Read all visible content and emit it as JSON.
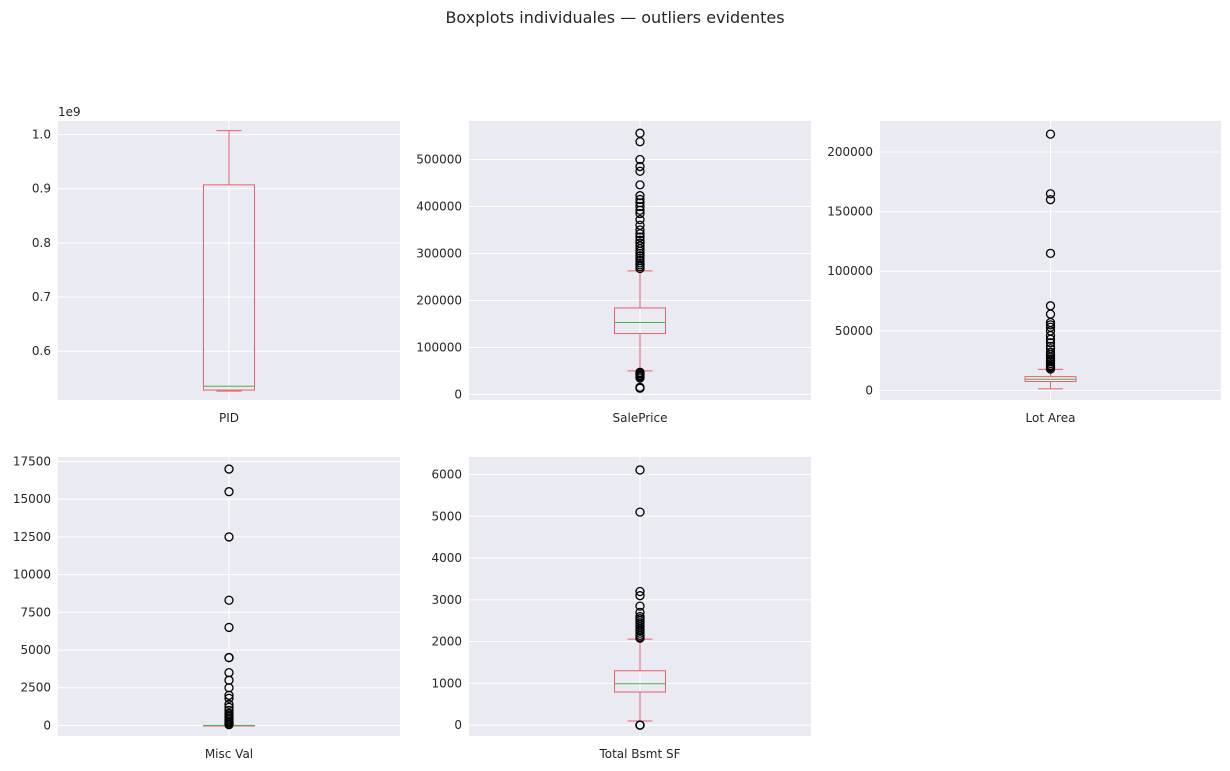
{
  "figure": {
    "suptitle": "Boxplots individuales — outliers evidentes",
    "style": {
      "axes_bg": "#eaeaf2",
      "grid": "#ffffff",
      "box": "#e8616e",
      "median": "#4daf4a",
      "flier": "#000000"
    }
  },
  "chart_data": [
    {
      "type": "box",
      "category": "PID",
      "ylim": [
        0.51,
        1.025
      ],
      "yticks": [
        0.6,
        0.7,
        0.8,
        0.9,
        1.0
      ],
      "ytick_labels": [
        "0.6",
        "0.7",
        "0.8",
        "0.9",
        "1.0"
      ],
      "offset_label": "1e9",
      "stats": {
        "whislo": 0.5263,
        "q1": 0.5284,
        "med": 0.5354,
        "q3": 0.9071,
        "whishi": 1.0072
      },
      "fliers": []
    },
    {
      "type": "box",
      "category": "SalePrice",
      "ylim": [
        -12000,
        582000
      ],
      "yticks": [
        0,
        100000,
        200000,
        300000,
        400000,
        500000
      ],
      "ytick_labels": [
        "0",
        "100000",
        "200000",
        "300000",
        "400000",
        "500000"
      ],
      "stats": {
        "whislo": 50000,
        "q1": 129500,
        "med": 153000,
        "q3": 184000,
        "whishi": 263000
      },
      "fliers": [
        13000,
        15000,
        35000,
        38000,
        40000,
        43000,
        45000,
        47000,
        268000,
        272000,
        276000,
        280000,
        285000,
        290000,
        295000,
        300000,
        305000,
        310000,
        316000,
        322000,
        328000,
        335000,
        342000,
        350000,
        360000,
        372000,
        385000,
        392000,
        400000,
        408000,
        415000,
        423000,
        446000,
        475000,
        485000,
        500000,
        538000,
        556000
      ]
    },
    {
      "type": "box",
      "category": "Lot Area",
      "ylim": [
        -8000,
        226000
      ],
      "yticks": [
        0,
        50000,
        100000,
        150000,
        200000
      ],
      "ytick_labels": [
        "0",
        "50000",
        "100000",
        "150000",
        "200000"
      ],
      "stats": {
        "whislo": 1300,
        "q1": 7500,
        "med": 9450,
        "q3": 11600,
        "whishi": 17700
      },
      "fliers": [
        18000,
        19000,
        20000,
        21000,
        22500,
        24000,
        25000,
        26500,
        28000,
        30000,
        32000,
        35000,
        37000,
        40000,
        43000,
        46000,
        50000,
        53000,
        55000,
        57000,
        64000,
        71000,
        115000,
        160000,
        165000,
        215000
      ]
    },
    {
      "type": "box",
      "category": "Misc Val",
      "ylim": [
        -700,
        17800
      ],
      "yticks": [
        0,
        2500,
        5000,
        7500,
        10000,
        12500,
        15000,
        17500
      ],
      "ytick_labels": [
        "0",
        "2500",
        "5000",
        "7500",
        "10000",
        "12500",
        "15000",
        "17500"
      ],
      "stats": {
        "whislo": 0,
        "q1": 0,
        "med": 0,
        "q3": 0,
        "whishi": 0
      },
      "fliers": [
        50,
        100,
        200,
        300,
        400,
        500,
        600,
        700,
        800,
        1000,
        1200,
        1400,
        1800,
        2000,
        2500,
        3000,
        3500,
        4500,
        4500,
        6500,
        8300,
        12500,
        15500,
        17000
      ]
    },
    {
      "type": "box",
      "category": "Total Bsmt SF",
      "ylim": [
        -260,
        6420
      ],
      "yticks": [
        0,
        1000,
        2000,
        3000,
        4000,
        5000,
        6000
      ],
      "ytick_labels": [
        "0",
        "1000",
        "2000",
        "3000",
        "4000",
        "5000",
        "6000"
      ],
      "stats": {
        "whislo": 100,
        "q1": 793,
        "med": 990,
        "q3": 1302,
        "whishi": 2060
      },
      "fliers": [
        0,
        0,
        0,
        2080,
        2110,
        2150,
        2200,
        2250,
        2300,
        2350,
        2400,
        2450,
        2500,
        2550,
        2600,
        2700,
        2850,
        3100,
        3200,
        5100,
        6110
      ]
    }
  ]
}
